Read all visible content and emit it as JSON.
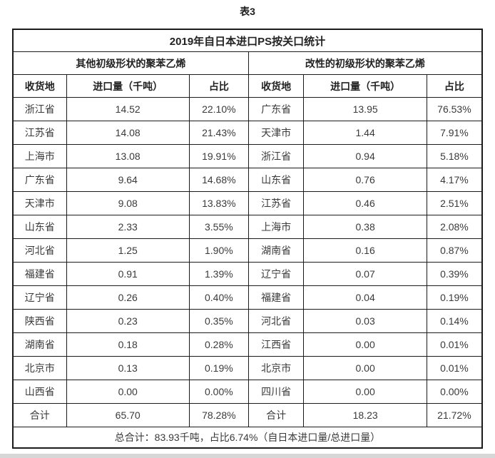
{
  "caption": "表3",
  "colors": {
    "border": "#1b1b1b",
    "text": "#3a3a3a",
    "page_edge": "#d7d7d7"
  },
  "chart_data": {
    "type": "table",
    "title": "2019年自日本进口PS按关口统计",
    "footer": "总合计：83.93千吨，占比6.74%（自日本进口量/总进口量）",
    "groups": [
      {
        "name": "其他初级形状的聚苯乙烯",
        "columns": [
          "收货地",
          "进口量（千吨）",
          "占比"
        ],
        "rows": [
          [
            "浙江省",
            "14.52",
            "22.10%"
          ],
          [
            "江苏省",
            "14.08",
            "21.43%"
          ],
          [
            "上海市",
            "13.08",
            "19.91%"
          ],
          [
            "广东省",
            "9.64",
            "14.68%"
          ],
          [
            "天津市",
            "9.08",
            "13.83%"
          ],
          [
            "山东省",
            "2.33",
            "3.55%"
          ],
          [
            "河北省",
            "1.25",
            "1.90%"
          ],
          [
            "福建省",
            "0.91",
            "1.39%"
          ],
          [
            "辽宁省",
            "0.26",
            "0.40%"
          ],
          [
            "陕西省",
            "0.23",
            "0.35%"
          ],
          [
            "湖南省",
            "0.18",
            "0.28%"
          ],
          [
            "北京市",
            "0.13",
            "0.19%"
          ],
          [
            "山西省",
            "0.00",
            "0.00%"
          ]
        ],
        "total": [
          "合计",
          "65.70",
          "78.28%"
        ]
      },
      {
        "name": "改性的初级形状的聚苯乙烯",
        "columns": [
          "收货地",
          "进口量（千吨）",
          "占比"
        ],
        "rows": [
          [
            "广东省",
            "13.95",
            "76.53%"
          ],
          [
            "天津市",
            "1.44",
            "7.91%"
          ],
          [
            "浙江省",
            "0.94",
            "5.18%"
          ],
          [
            "山东省",
            "0.76",
            "4.17%"
          ],
          [
            "江苏省",
            "0.46",
            "2.51%"
          ],
          [
            "上海市",
            "0.38",
            "2.08%"
          ],
          [
            "湖南省",
            "0.16",
            "0.87%"
          ],
          [
            "辽宁省",
            "0.07",
            "0.39%"
          ],
          [
            "福建省",
            "0.04",
            "0.19%"
          ],
          [
            "河北省",
            "0.03",
            "0.14%"
          ],
          [
            "江西省",
            "0.00",
            "0.01%"
          ],
          [
            "北京市",
            "0.00",
            "0.01%"
          ],
          [
            "四川省",
            "0.00",
            "0.00%"
          ]
        ],
        "total": [
          "合计",
          "18.23",
          "21.72%"
        ]
      }
    ]
  }
}
